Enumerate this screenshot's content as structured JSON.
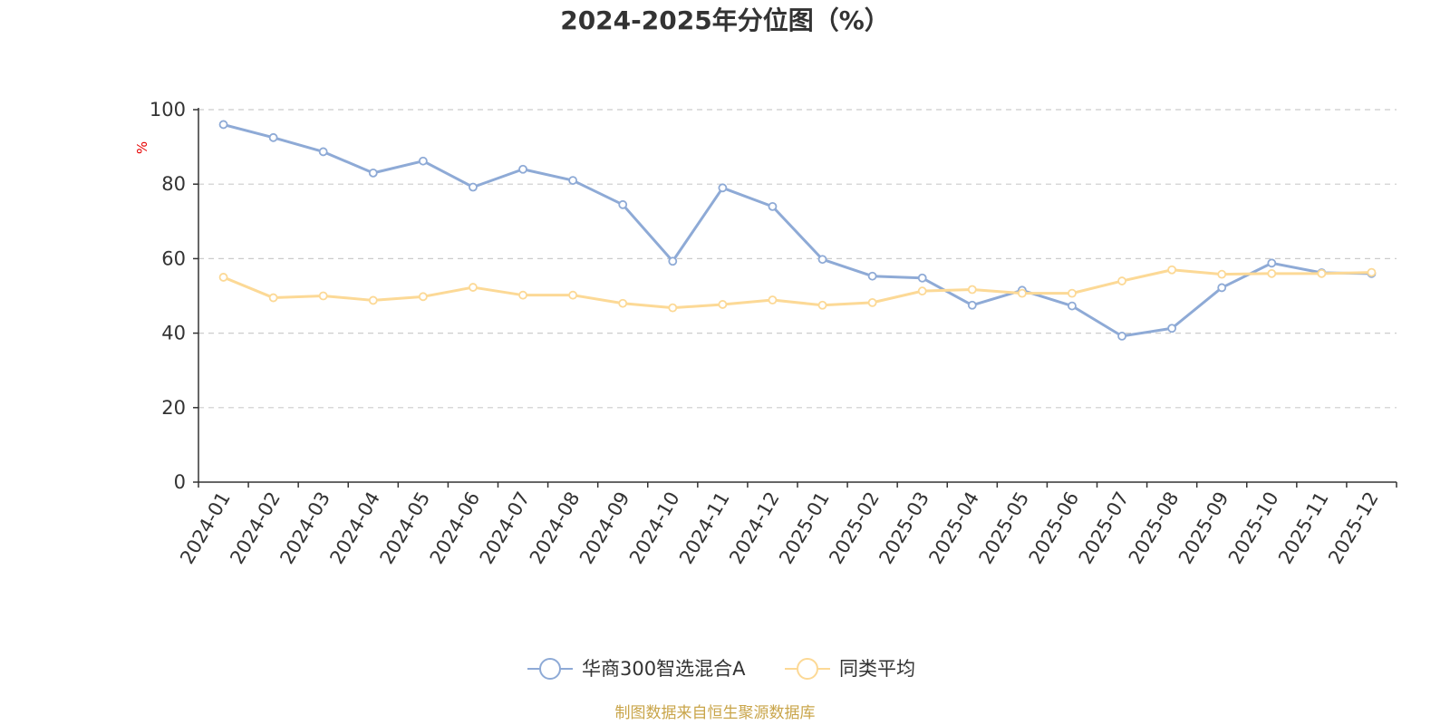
{
  "chart_data": {
    "type": "line",
    "title": "2024-2025年分位图（%）",
    "ylabel": "%",
    "xlabel": "",
    "ylim": [
      0,
      100
    ],
    "yticks": [
      0,
      20,
      40,
      60,
      80,
      100
    ],
    "grid": true,
    "legend_position": "bottom",
    "categories": [
      "2024-01",
      "2024-02",
      "2024-03",
      "2024-04",
      "2024-05",
      "2024-06",
      "2024-07",
      "2024-08",
      "2024-09",
      "2024-10",
      "2024-11",
      "2024-12",
      "2025-01",
      "2025-02",
      "2025-03",
      "2025-04",
      "2025-05",
      "2025-06",
      "2025-07",
      "2025-08",
      "2025-09",
      "2025-10",
      "2025-11",
      "2025-12"
    ],
    "series": [
      {
        "name": "华商300智选混合A",
        "color": "#8eaad6",
        "values": [
          96.0,
          92.5,
          88.7,
          83.0,
          86.2,
          79.2,
          84.0,
          81.0,
          74.5,
          59.3,
          79.0,
          74.0,
          59.8,
          55.3,
          54.8,
          47.5,
          51.5,
          47.3,
          39.2,
          41.3,
          52.2,
          58.8,
          56.2,
          56.0
        ]
      },
      {
        "name": "同类平均",
        "color": "#fcd996",
        "values": [
          55.0,
          49.5,
          50.0,
          48.8,
          49.8,
          52.3,
          50.2,
          50.2,
          48.0,
          46.8,
          47.7,
          48.9,
          47.5,
          48.2,
          51.3,
          51.7,
          50.7,
          50.7,
          54.0,
          57.0,
          55.8,
          56.0,
          56.0,
          56.3
        ]
      }
    ],
    "source": "制图数据来自恒生聚源数据库",
    "source_color": "#c9a54a",
    "axis_color": "#333333",
    "grid_color": "#cccccc"
  }
}
